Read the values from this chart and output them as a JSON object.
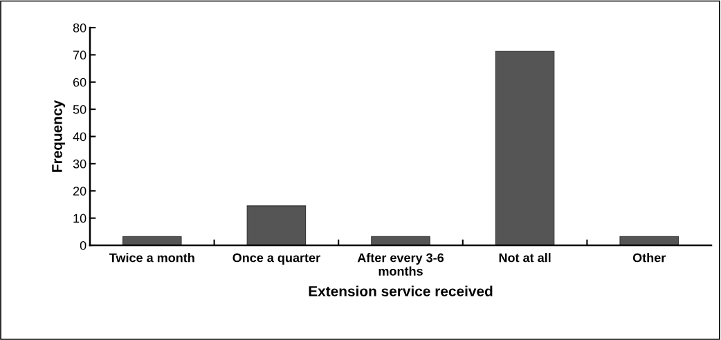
{
  "chart_data": {
    "type": "bar",
    "xlabel": "Extension service received",
    "ylabel": "Frequency",
    "categories": [
      "Twice a month",
      "Once a quarter",
      "After every 3-6\nmonths",
      "Not at all",
      "Other"
    ],
    "values": [
      3.2,
      14.5,
      3.2,
      71.3,
      3.2
    ],
    "color": "#555555",
    "ylim": [
      0,
      80
    ],
    "yticks": [
      0,
      10,
      20,
      30,
      40,
      50,
      60,
      70,
      80
    ],
    "grid": false
  }
}
